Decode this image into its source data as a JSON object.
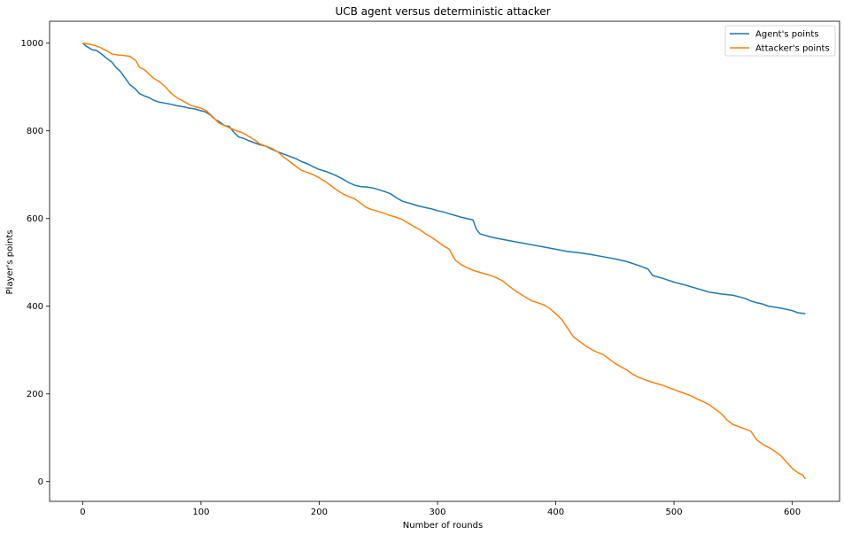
{
  "chart_data": {
    "type": "line",
    "title": "UCB agent versus deterministic attacker",
    "xlabel": "Number of rounds",
    "ylabel": "Player's points",
    "xlim": [
      -28,
      640
    ],
    "ylim": [
      -45,
      1050
    ],
    "xticks": [
      0,
      100,
      200,
      300,
      400,
      500,
      600
    ],
    "yticks": [
      0,
      200,
      400,
      600,
      800,
      1000
    ],
    "grid": false,
    "legend": "top-right",
    "series": [
      {
        "name": "Agent's points",
        "color": "#1f77b4",
        "x": [
          0,
          3,
          5,
          8,
          12,
          16,
          20,
          25,
          28,
          32,
          36,
          40,
          44,
          48,
          52,
          56,
          60,
          64,
          68,
          72,
          76,
          80,
          85,
          90,
          95,
          100,
          104,
          108,
          112,
          116,
          120,
          124,
          128,
          132,
          136,
          140,
          145,
          150,
          155,
          160,
          165,
          170,
          175,
          180,
          185,
          190,
          195,
          200,
          205,
          210,
          215,
          220,
          225,
          230,
          235,
          240,
          245,
          250,
          255,
          260,
          265,
          270,
          275,
          280,
          285,
          290,
          295,
          300,
          305,
          310,
          315,
          320,
          325,
          330,
          333,
          336,
          340,
          345,
          350,
          360,
          370,
          380,
          390,
          400,
          410,
          420,
          430,
          440,
          450,
          460,
          470,
          478,
          482,
          490,
          500,
          510,
          520,
          530,
          540,
          550,
          560,
          565,
          570,
          575,
          580,
          590,
          600,
          605,
          611
        ],
        "values": [
          1000,
          993,
          990,
          985,
          983,
          975,
          966,
          956,
          945,
          935,
          920,
          905,
          897,
          885,
          880,
          876,
          870,
          866,
          864,
          862,
          860,
          857,
          855,
          852,
          850,
          846,
          843,
          836,
          826,
          820,
          812,
          810,
          796,
          786,
          783,
          778,
          773,
          768,
          765,
          758,
          752,
          747,
          742,
          737,
          730,
          725,
          718,
          712,
          708,
          703,
          697,
          690,
          682,
          676,
          673,
          672,
          670,
          666,
          662,
          657,
          648,
          640,
          636,
          632,
          628,
          625,
          622,
          618,
          615,
          611,
          607,
          603,
          600,
          597,
          575,
          565,
          562,
          558,
          555,
          550,
          545,
          540,
          535,
          530,
          525,
          522,
          518,
          513,
          508,
          502,
          493,
          485,
          470,
          464,
          455,
          448,
          440,
          432,
          428,
          425,
          418,
          412,
          408,
          405,
          400,
          396,
          390,
          385,
          383
        ]
      },
      {
        "name": "Attacker's points",
        "color": "#ff7f0e",
        "x": [
          0,
          5,
          10,
          15,
          20,
          25,
          30,
          35,
          40,
          45,
          48,
          52,
          56,
          60,
          65,
          70,
          75,
          80,
          85,
          90,
          95,
          100,
          105,
          110,
          115,
          120,
          125,
          130,
          135,
          140,
          145,
          150,
          155,
          160,
          165,
          170,
          175,
          180,
          185,
          190,
          195,
          200,
          205,
          210,
          215,
          220,
          225,
          230,
          235,
          240,
          245,
          250,
          255,
          260,
          265,
          270,
          275,
          280,
          285,
          290,
          295,
          300,
          305,
          310,
          315,
          320,
          325,
          330,
          335,
          340,
          345,
          350,
          355,
          360,
          365,
          370,
          375,
          380,
          385,
          390,
          395,
          400,
          405,
          410,
          415,
          420,
          425,
          430,
          435,
          440,
          445,
          450,
          455,
          460,
          465,
          470,
          475,
          480,
          485,
          490,
          495,
          500,
          505,
          510,
          515,
          520,
          525,
          530,
          535,
          540,
          545,
          550,
          555,
          560,
          565,
          570,
          575,
          580,
          585,
          590,
          595,
          600,
          605,
          609,
          611
        ],
        "values": [
          1000,
          998,
          995,
          990,
          983,
          975,
          973,
          972,
          970,
          960,
          945,
          940,
          930,
          920,
          912,
          900,
          885,
          875,
          868,
          860,
          855,
          852,
          845,
          832,
          818,
          812,
          806,
          800,
          796,
          788,
          780,
          770,
          765,
          760,
          752,
          740,
          730,
          720,
          710,
          705,
          700,
          693,
          685,
          675,
          665,
          656,
          650,
          645,
          635,
          625,
          620,
          616,
          612,
          607,
          603,
          598,
          590,
          582,
          575,
          565,
          557,
          548,
          538,
          530,
          505,
          495,
          488,
          482,
          478,
          474,
          470,
          465,
          458,
          447,
          437,
          428,
          420,
          412,
          408,
          403,
          395,
          383,
          370,
          350,
          330,
          320,
          310,
          302,
          295,
          290,
          280,
          270,
          262,
          255,
          245,
          238,
          233,
          228,
          224,
          220,
          215,
          210,
          205,
          200,
          195,
          188,
          182,
          175,
          165,
          155,
          140,
          130,
          125,
          120,
          115,
          95,
          85,
          78,
          70,
          60,
          45,
          30,
          20,
          15,
          6
        ]
      }
    ]
  }
}
